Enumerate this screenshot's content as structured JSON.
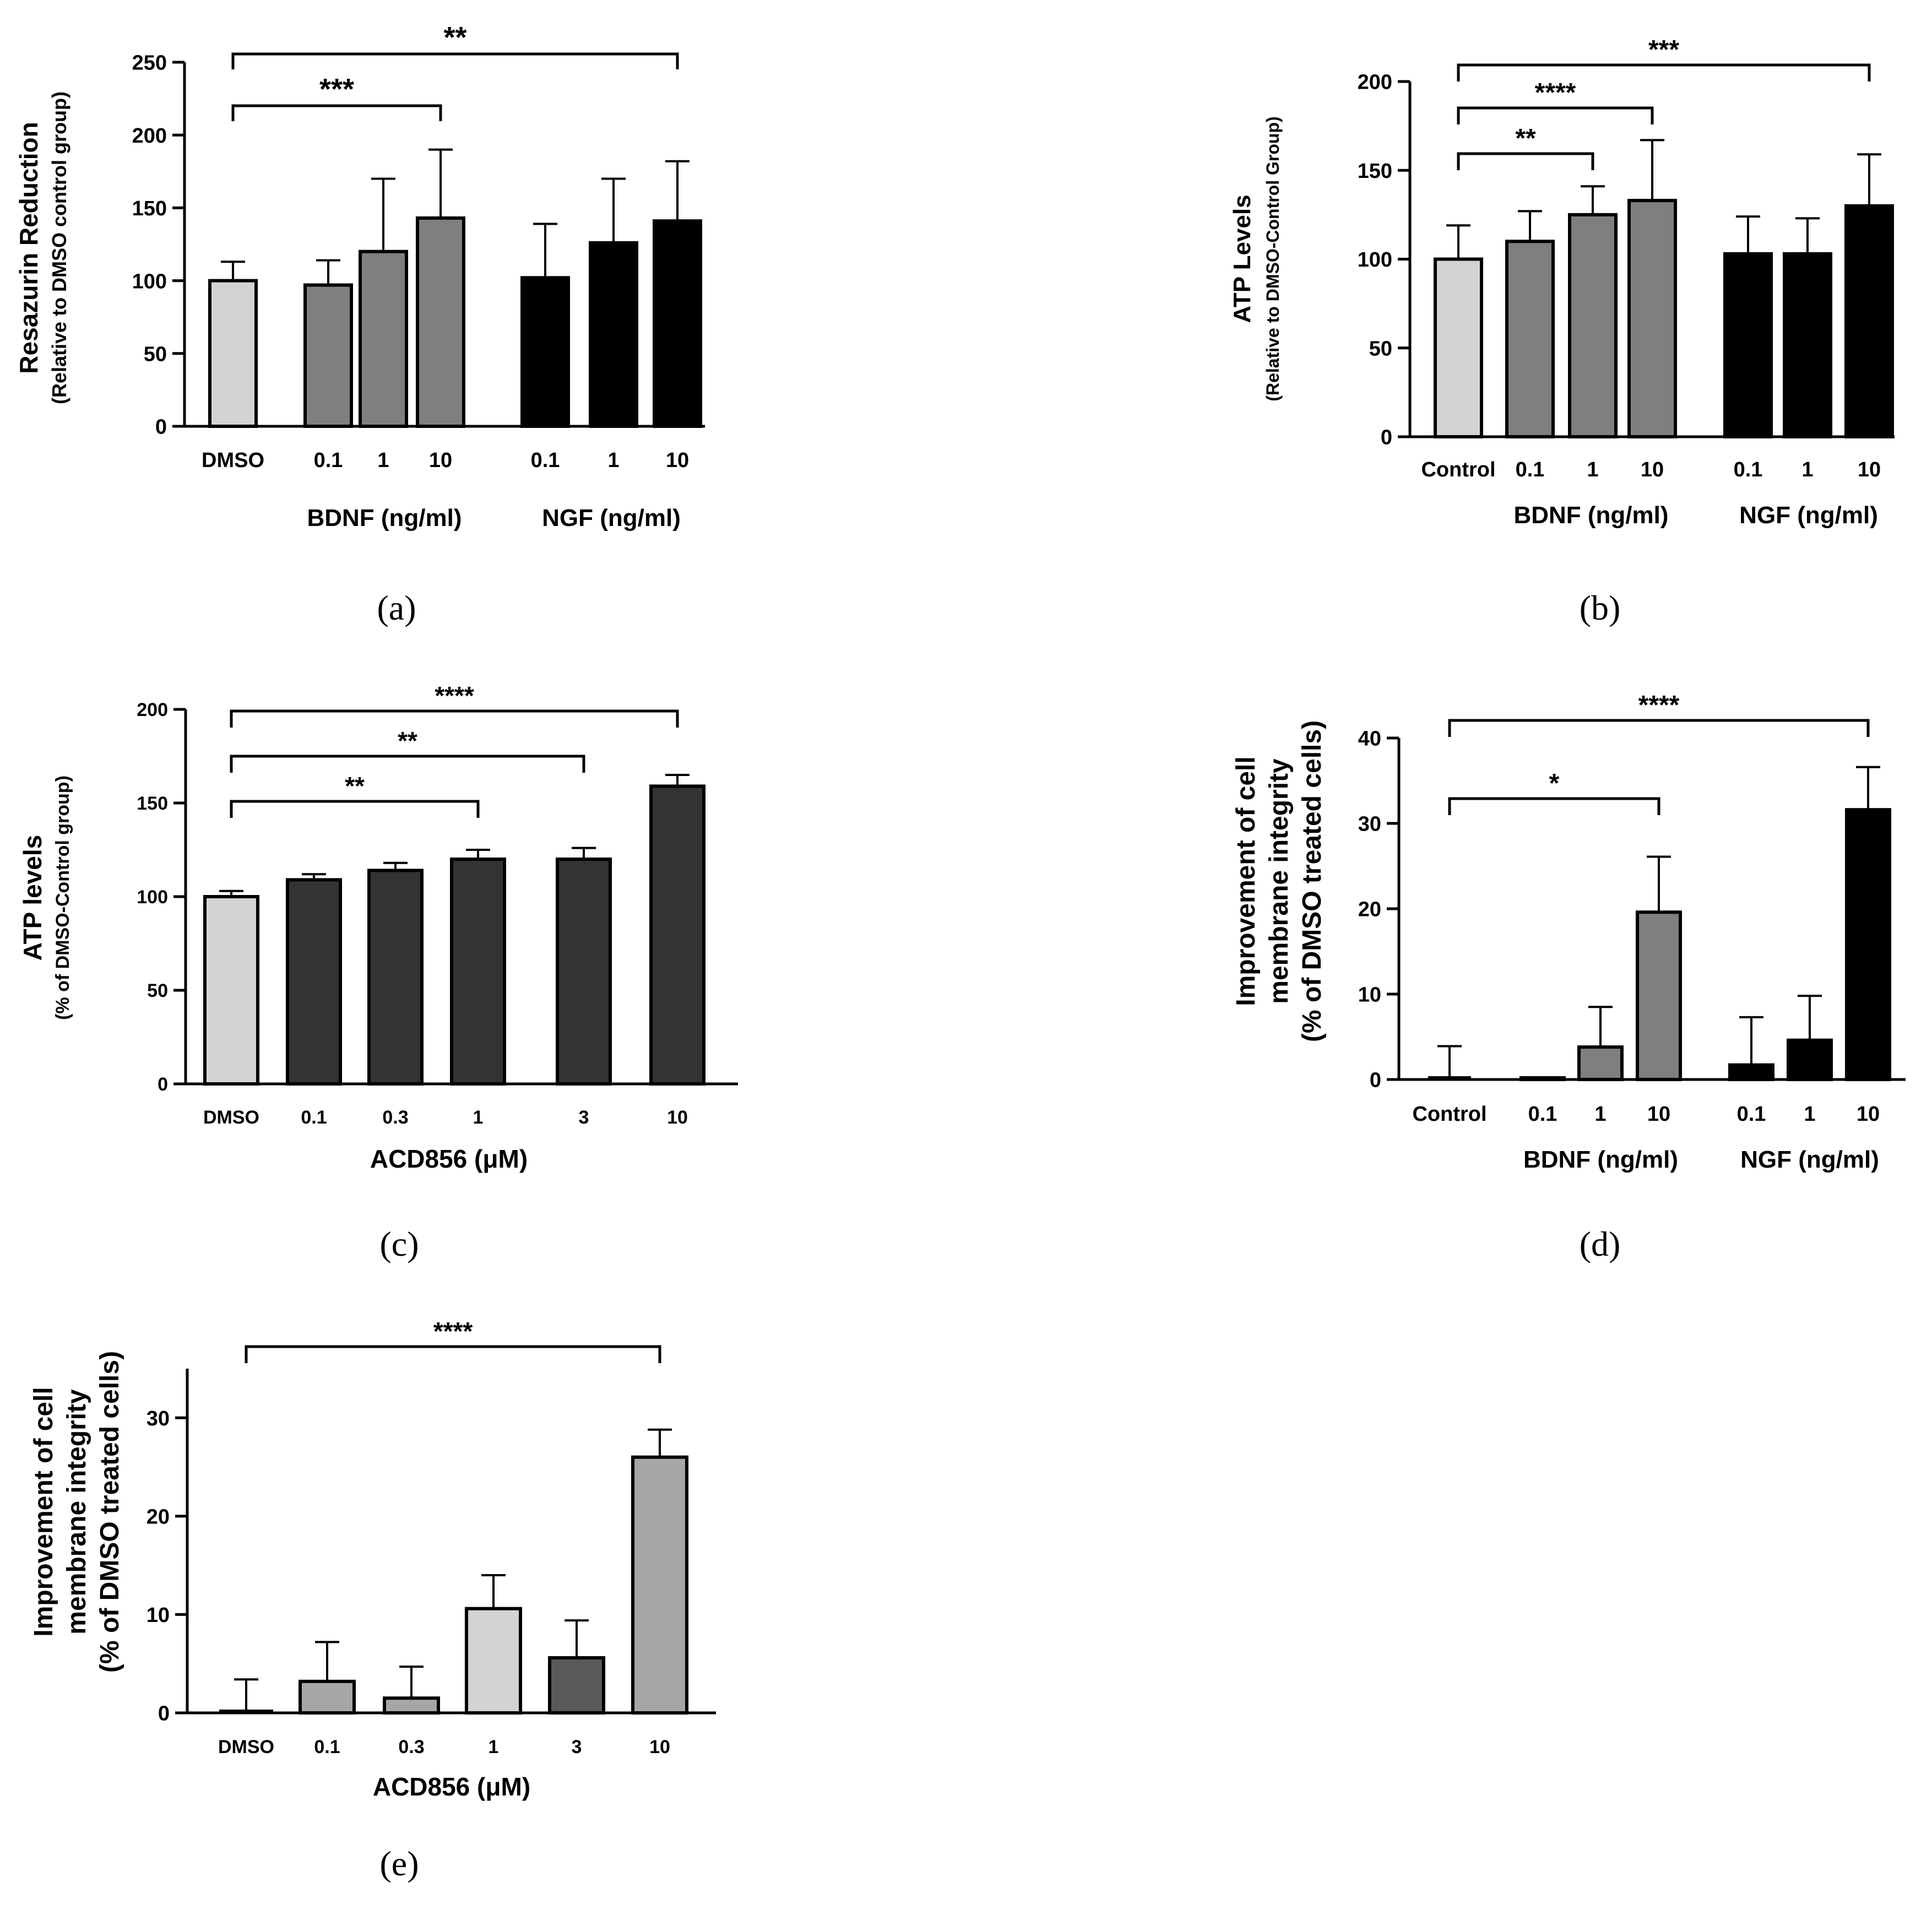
{
  "chart_data": [
    {
      "id": "a",
      "panel_label": "(a)",
      "type": "bar",
      "ylabel": "Resazurin Reduction",
      "ylabel2": "(Relative to DMSO control group)",
      "ylim": [
        0,
        250
      ],
      "yticks": [
        0,
        50,
        100,
        150,
        200,
        250
      ],
      "categories": [
        "DMSO",
        "0.1",
        "1",
        "10",
        "0.1",
        "1",
        "10"
      ],
      "values": [
        100,
        97,
        120,
        143,
        102,
        126,
        141
      ],
      "errors": [
        13,
        17,
        50,
        47,
        37,
        44,
        41
      ],
      "bar_colors": [
        "#d3d3d3",
        "#7f7f7f",
        "#7f7f7f",
        "#7f7f7f",
        "#000000",
        "#000000",
        "#000000"
      ],
      "group_labels": [
        {
          "text": "BDNF (ng/ml)",
          "from": 1,
          "to": 3
        },
        {
          "text": "NGF (ng/ml)",
          "from": 4,
          "to": 6
        }
      ],
      "significance": [
        {
          "from": 0,
          "to": 3,
          "label": "***"
        },
        {
          "from": 0,
          "to": 6,
          "label": "**"
        }
      ]
    },
    {
      "id": "b",
      "panel_label": "(b)",
      "type": "bar",
      "ylabel": "ATP Levels",
      "ylabel2": "(Relative to DMSO-Control Group)",
      "ylim": [
        0,
        200
      ],
      "yticks": [
        0,
        50,
        100,
        150,
        200
      ],
      "categories": [
        "Control",
        "0.1",
        "1",
        "10",
        "0.1",
        "1",
        "10"
      ],
      "values": [
        100,
        110,
        125,
        133,
        103,
        103,
        130
      ],
      "errors": [
        19,
        17,
        16,
        34,
        21,
        20,
        29
      ],
      "bar_colors": [
        "#d3d3d3",
        "#7f7f7f",
        "#7f7f7f",
        "#7f7f7f",
        "#000000",
        "#000000",
        "#000000"
      ],
      "group_labels": [
        {
          "text": "BDNF (ng/ml)",
          "from": 1,
          "to": 3
        },
        {
          "text": "NGF (ng/ml)",
          "from": 4,
          "to": 6
        }
      ],
      "significance": [
        {
          "from": 0,
          "to": 2,
          "label": "**"
        },
        {
          "from": 0,
          "to": 3,
          "label": "****"
        },
        {
          "from": 0,
          "to": 6,
          "label": "***"
        }
      ]
    },
    {
      "id": "c",
      "panel_label": "(c)",
      "type": "bar",
      "ylabel": "ATP levels",
      "ylabel2": "(% of DMSO-Control group)",
      "xlabel": "ACD856 (μM)",
      "ylim": [
        0,
        200
      ],
      "yticks": [
        0,
        50,
        100,
        150,
        200
      ],
      "categories": [
        "DMSO",
        "0.1",
        "0.3",
        "1",
        "3",
        "10"
      ],
      "values": [
        100,
        109,
        114,
        120,
        120,
        159
      ],
      "errors": [
        3,
        3,
        4,
        5,
        6,
        6
      ],
      "bar_colors": [
        "#d3d3d3",
        "#333333",
        "#333333",
        "#333333",
        "#333333",
        "#333333"
      ],
      "significance": [
        {
          "from": 0,
          "to": 3,
          "label": "**"
        },
        {
          "from": 0,
          "to": 4,
          "label": "**"
        },
        {
          "from": 0,
          "to": 5,
          "label": "****"
        }
      ]
    },
    {
      "id": "d",
      "panel_label": "(d)",
      "type": "bar",
      "ylabel": "Improvement of cell",
      "ylabel2": "membrane integrity",
      "ylabel3": "(% of DMSO treated cells)",
      "ylim": [
        0,
        40
      ],
      "yticks": [
        0,
        10,
        20,
        30,
        40
      ],
      "categories": [
        "Control",
        "0.1",
        "1",
        "10",
        "0.1",
        "1",
        "10"
      ],
      "values": [
        0,
        0.2,
        3.8,
        19.6,
        1.7,
        4.6,
        31.6
      ],
      "errors": [
        3.9,
        0,
        4.7,
        6.5,
        5.6,
        5.2,
        5.0
      ],
      "bar_colors": [
        "#d3d3d3",
        "#7f7f7f",
        "#7f7f7f",
        "#7f7f7f",
        "#000000",
        "#000000",
        "#000000"
      ],
      "group_labels": [
        {
          "text": "BDNF (ng/ml)",
          "from": 1,
          "to": 3
        },
        {
          "text": "NGF (ng/ml)",
          "from": 4,
          "to": 6
        }
      ],
      "significance": [
        {
          "from": 0,
          "to": 3,
          "label": "*"
        },
        {
          "from": 0,
          "to": 6,
          "label": "****"
        }
      ]
    },
    {
      "id": "e",
      "panel_label": "(e)",
      "type": "bar",
      "ylabel": "Improvement of cell",
      "ylabel2": "membrane integrity",
      "ylabel3": "(% of DMSO treated cells)",
      "xlabel": "ACD856 (μM)",
      "ylim": [
        0,
        35
      ],
      "yticks": [
        0,
        10,
        20,
        30
      ],
      "categories": [
        "DMSO",
        "0.1",
        "0.3",
        "1",
        "3",
        "10"
      ],
      "values": [
        0,
        3.2,
        1.5,
        10.6,
        5.6,
        26.0
      ],
      "errors": [
        3.4,
        4.0,
        3.2,
        3.4,
        3.8,
        2.8
      ],
      "bar_colors": [
        "#d3d3d3",
        "#a6a6a6",
        "#a6a6a6",
        "#d3d3d3",
        "#595959",
        "#a6a6a6"
      ],
      "significance": [
        {
          "from": 0,
          "to": 5,
          "label": "****"
        }
      ]
    }
  ]
}
